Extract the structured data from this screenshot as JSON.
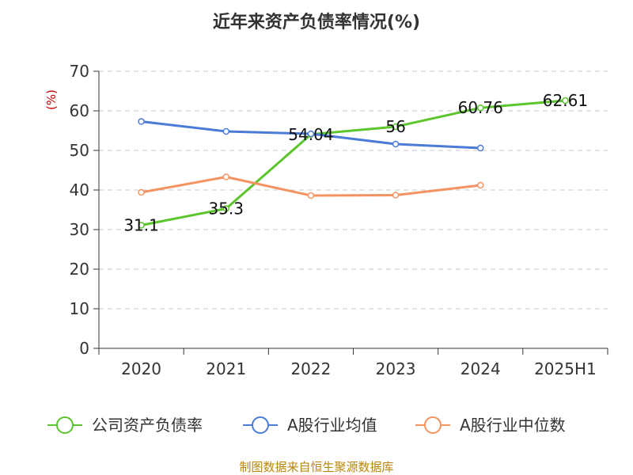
{
  "chart_data": {
    "type": "line",
    "title": "近年来资产负债率情况(%)",
    "ylabel": "(%)",
    "xlabel": "",
    "categories": [
      "2020",
      "2021",
      "2022",
      "2023",
      "2024",
      "2025H1"
    ],
    "ylim": [
      0,
      70
    ],
    "yticks": [
      0,
      10,
      20,
      30,
      40,
      50,
      60,
      70
    ],
    "grid": true,
    "legend_position": "bottom",
    "series": [
      {
        "name": "公司资产负债率",
        "color": "#5cc52d",
        "values": [
          31.1,
          35.3,
          54.04,
          56,
          60.76,
          62.61
        ],
        "labels": [
          "31.1",
          "35.3",
          "54.04",
          "56",
          "60.76",
          "62.61"
        ]
      },
      {
        "name": "A股行业均值",
        "color": "#4a7bd6",
        "values": [
          57.3,
          54.8,
          54.2,
          51.6,
          50.6,
          null
        ]
      },
      {
        "name": "A股行业中位数",
        "color": "#f59262",
        "values": [
          39.4,
          43.3,
          38.6,
          38.7,
          41.2,
          null
        ]
      }
    ]
  },
  "footer": {
    "source": "制图数据来自恒生聚源数据库"
  }
}
